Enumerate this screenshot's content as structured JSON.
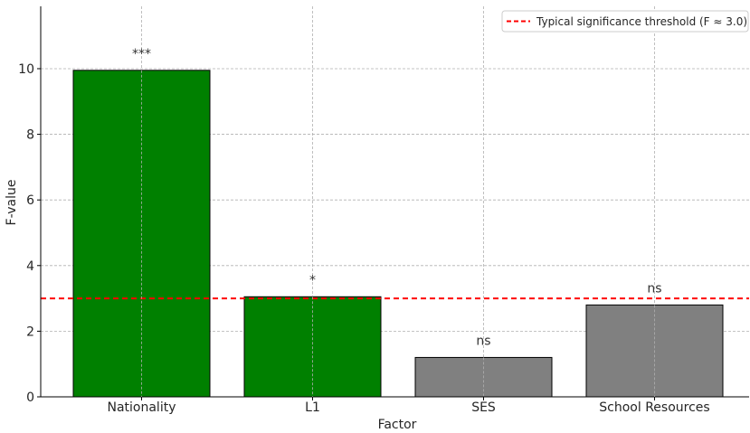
{
  "chart_data": {
    "type": "bar",
    "title": "",
    "xlabel": "Factor",
    "ylabel": "F-value",
    "categories": [
      "Nationality",
      "L1",
      "SES",
      "School Resources"
    ],
    "values": [
      9.95,
      3.05,
      1.2,
      2.8
    ],
    "annotations": [
      "***",
      "*",
      "ns",
      "ns"
    ],
    "bar_colors": [
      "#008000",
      "#008000",
      "#808080",
      "#808080"
    ],
    "ylim": [
      0,
      11.9
    ],
    "yticks": [
      0,
      2,
      4,
      6,
      8,
      10
    ],
    "grid": true,
    "threshold": {
      "value": 3.0,
      "label": "Typical significance threshold (F ≈ 3.0)",
      "color": "#ff0000",
      "style": "dashed"
    },
    "legend_position": "top-right"
  }
}
